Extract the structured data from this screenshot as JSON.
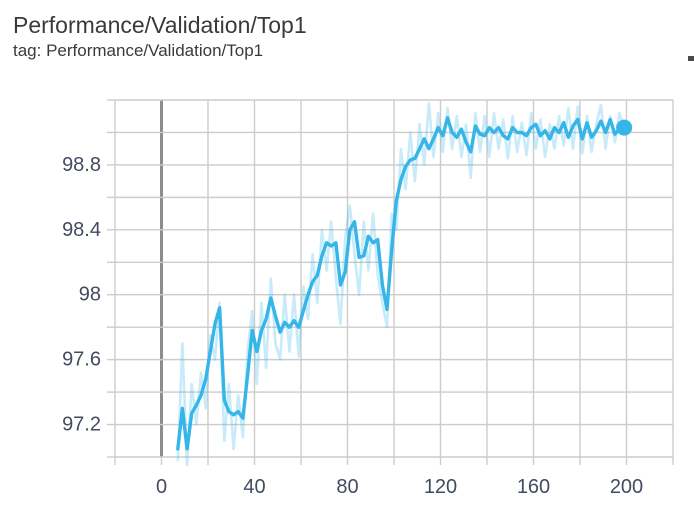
{
  "card": {
    "title": "Performance/Validation/Top1",
    "subtitle": "tag: Performance/Validation/Top1"
  },
  "colors": {
    "accent": "#35b5e8",
    "raw_line_opacity": 0.27,
    "grid": "#cccccc",
    "zero_line": "#8d8d8d",
    "tick_text": "#424b60",
    "title_text": "#3a3a3a",
    "background": "#ffffff"
  },
  "chart_data": {
    "type": "line",
    "title": "Performance/Validation/Top1",
    "xlabel": "",
    "ylabel": "",
    "xlim": [
      -20,
      220
    ],
    "ylim": [
      97.0,
      99.2
    ],
    "x_grid_step": 20,
    "y_grid_step": 0.2,
    "grid": true,
    "legend": "none",
    "x_tick_values": [
      0,
      40,
      80,
      120,
      160,
      200
    ],
    "x_tick_labels": [
      "0",
      "40",
      "80",
      "120",
      "160",
      "200"
    ],
    "y_tick_values": [
      97.2,
      97.6,
      98.0,
      98.4,
      98.8
    ],
    "y_tick_labels": [
      "97.2",
      "97.6",
      "98",
      "98.4",
      "98.8"
    ],
    "x": [
      7,
      9,
      11,
      13,
      15,
      17,
      19,
      21,
      23,
      25,
      27,
      29,
      31,
      33,
      35,
      37,
      39,
      41,
      43,
      45,
      47,
      49,
      51,
      53,
      55,
      57,
      59,
      61,
      63,
      65,
      67,
      69,
      71,
      73,
      75,
      77,
      79,
      81,
      83,
      85,
      87,
      89,
      91,
      93,
      95,
      97,
      99,
      101,
      103,
      105,
      107,
      109,
      111,
      113,
      115,
      117,
      119,
      121,
      123,
      125,
      127,
      129,
      131,
      133,
      135,
      137,
      139,
      141,
      143,
      145,
      147,
      149,
      151,
      153,
      155,
      157,
      159,
      161,
      163,
      165,
      167,
      169,
      171,
      173,
      175,
      177,
      179,
      181,
      183,
      185,
      187,
      189,
      191,
      193,
      195,
      197,
      199
    ],
    "series": [
      {
        "name": "raw",
        "values": [
          96.98,
          97.7,
          96.95,
          97.45,
          97.2,
          97.52,
          97.3,
          97.75,
          97.6,
          97.95,
          97.1,
          97.45,
          97.05,
          97.38,
          97.12,
          97.65,
          97.9,
          97.45,
          97.95,
          97.55,
          98.1,
          97.7,
          97.6,
          98.0,
          97.65,
          98.0,
          97.62,
          98.05,
          97.85,
          98.25,
          97.95,
          98.4,
          98.15,
          98.45,
          98.1,
          97.82,
          98.35,
          98.55,
          98.25,
          98.0,
          98.45,
          98.15,
          98.5,
          98.12,
          97.95,
          97.8,
          98.5,
          98.4,
          98.9,
          98.65,
          99.0,
          98.7,
          99.05,
          98.8,
          99.18,
          98.85,
          99.12,
          98.88,
          99.15,
          98.9,
          99.1,
          98.85,
          99.05,
          98.72,
          99.12,
          98.88,
          99.1,
          98.85,
          99.12,
          98.9,
          99.08,
          98.84,
          99.1,
          98.88,
          99.06,
          98.86,
          99.12,
          98.9,
          99.08,
          98.85,
          99.05,
          98.9,
          99.1,
          98.92,
          99.15,
          98.9,
          99.16,
          98.87,
          99.1,
          98.88,
          99.05,
          99.17,
          98.9,
          99.1,
          98.94,
          99.12,
          99.03
        ]
      },
      {
        "name": "smoothed",
        "values": [
          97.05,
          97.3,
          97.05,
          97.27,
          97.32,
          97.38,
          97.48,
          97.65,
          97.82,
          97.92,
          97.35,
          97.28,
          97.26,
          97.28,
          97.24,
          97.5,
          97.78,
          97.65,
          97.78,
          97.85,
          97.98,
          97.87,
          97.77,
          97.83,
          97.8,
          97.84,
          97.8,
          97.9,
          98.0,
          98.08,
          98.12,
          98.24,
          98.32,
          98.3,
          98.32,
          98.06,
          98.14,
          98.4,
          98.45,
          98.23,
          98.24,
          98.36,
          98.32,
          98.34,
          98.06,
          97.91,
          98.28,
          98.58,
          98.71,
          98.79,
          98.83,
          98.84,
          98.9,
          98.96,
          98.9,
          98.96,
          99.03,
          98.98,
          99.09,
          99.0,
          98.97,
          99.02,
          98.94,
          98.88,
          99.04,
          98.99,
          98.98,
          99.03,
          99.0,
          99.03,
          98.98,
          98.96,
          99.03,
          99.0,
          99.0,
          98.98,
          99.03,
          99.05,
          98.98,
          99.01,
          98.96,
          99.03,
          99.0,
          99.06,
          98.97,
          99.04,
          99.08,
          98.96,
          99.06,
          98.97,
          99.01,
          99.07,
          99.0,
          99.08,
          98.99,
          99.02,
          99.03
        ]
      }
    ],
    "end_marker": {
      "x": 199,
      "y": 99.03
    }
  }
}
